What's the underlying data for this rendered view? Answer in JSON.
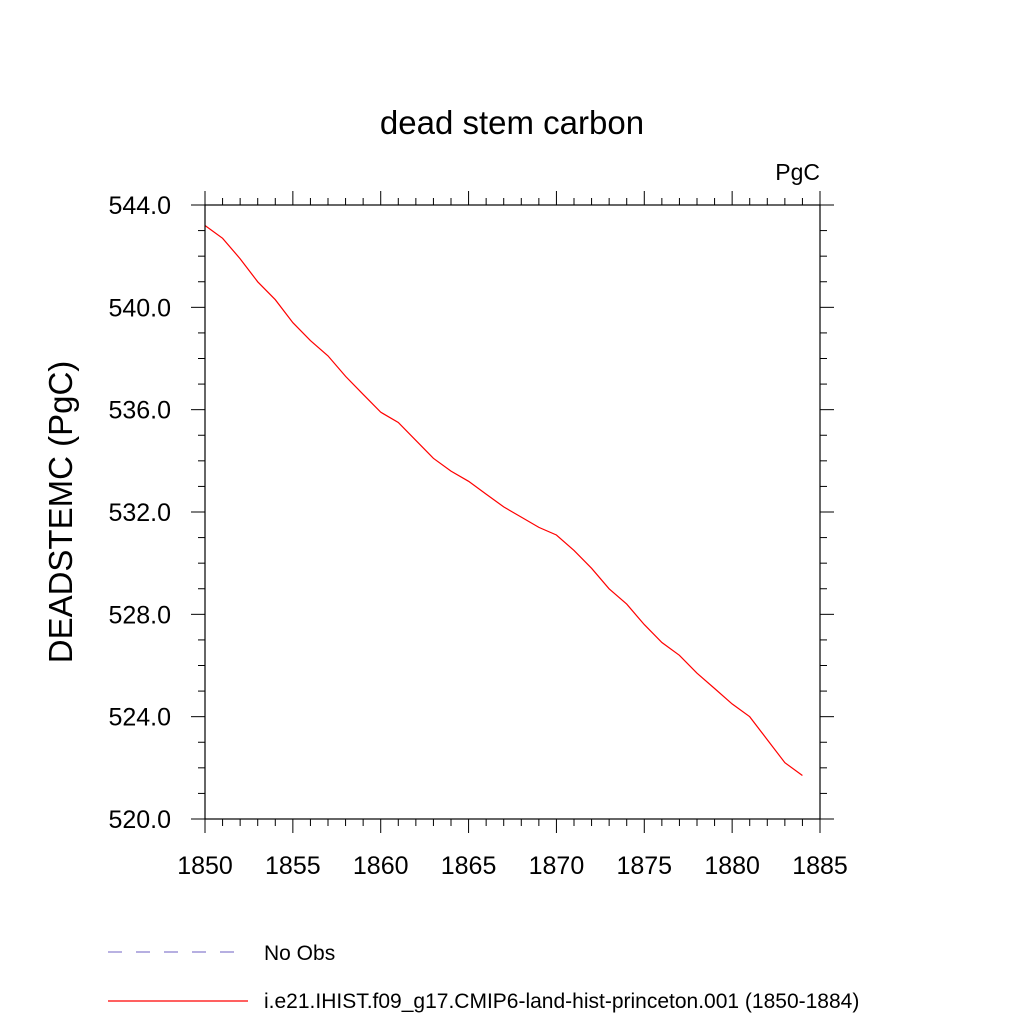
{
  "chart_data": {
    "type": "line",
    "title": "dead stem carbon",
    "units_label": "PgC",
    "ylabel": "DEADSTEMC  (PgC)",
    "xlabel": "",
    "xlim": [
      1850,
      1885
    ],
    "ylim": [
      520,
      544
    ],
    "x_ticks": [
      1850,
      1855,
      1860,
      1865,
      1870,
      1875,
      1880,
      1885
    ],
    "y_ticks": [
      "520.0",
      "524.0",
      "528.0",
      "532.0",
      "536.0",
      "540.0",
      "544.0"
    ],
    "x_minor_step": 1,
    "y_minor_step": 1,
    "grid": false,
    "legend_position": "bottom-left",
    "series": [
      {
        "name": "i.e21.IHIST.f09_g17.CMIP6-land-hist-princeton.001 (1850-1884)",
        "color": "#ff0000",
        "dash": "solid",
        "x": [
          1850,
          1851,
          1852,
          1853,
          1854,
          1855,
          1856,
          1857,
          1858,
          1859,
          1860,
          1861,
          1862,
          1863,
          1864,
          1865,
          1866,
          1867,
          1868,
          1869,
          1870,
          1871,
          1872,
          1873,
          1874,
          1875,
          1876,
          1877,
          1878,
          1879,
          1880,
          1881,
          1882,
          1883,
          1884
        ],
        "values": [
          543.2,
          542.7,
          541.9,
          541.0,
          540.3,
          539.4,
          538.7,
          538.1,
          537.3,
          536.6,
          535.9,
          535.5,
          534.8,
          534.1,
          533.6,
          533.2,
          532.7,
          532.2,
          531.8,
          531.4,
          531.1,
          530.5,
          529.8,
          529.0,
          528.4,
          527.6,
          526.9,
          526.4,
          525.7,
          525.1,
          524.5,
          524.0,
          523.1,
          522.2,
          521.7
        ]
      },
      {
        "name": "No Obs",
        "color": "#8a7fcf",
        "dash": "dashed",
        "x": [],
        "values": []
      }
    ]
  }
}
